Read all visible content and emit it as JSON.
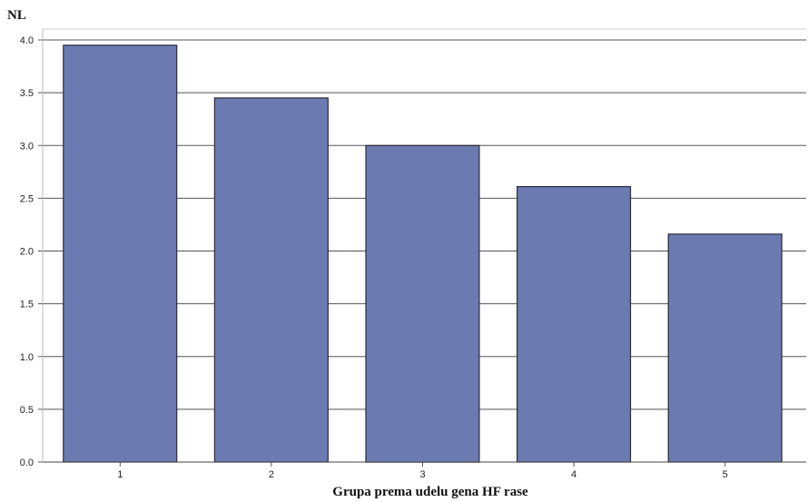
{
  "chart_data": {
    "type": "bar",
    "ylabel": "NL",
    "xlabel": "Grupa prema udelu gena HF rase",
    "categories": [
      "1",
      "2",
      "3",
      "4",
      "5"
    ],
    "values": [
      3.95,
      3.45,
      3.0,
      2.61,
      2.16
    ],
    "ylim": [
      0,
      4.0
    ],
    "yticks": [
      "0.0",
      "0.5",
      "1.0",
      "1.5",
      "2.0",
      "2.5",
      "3.0",
      "3.5",
      "4.0"
    ],
    "grid": "horizontal",
    "bar_color": "#6b7bb2",
    "bar_edge_color": "#2b2b3a"
  }
}
